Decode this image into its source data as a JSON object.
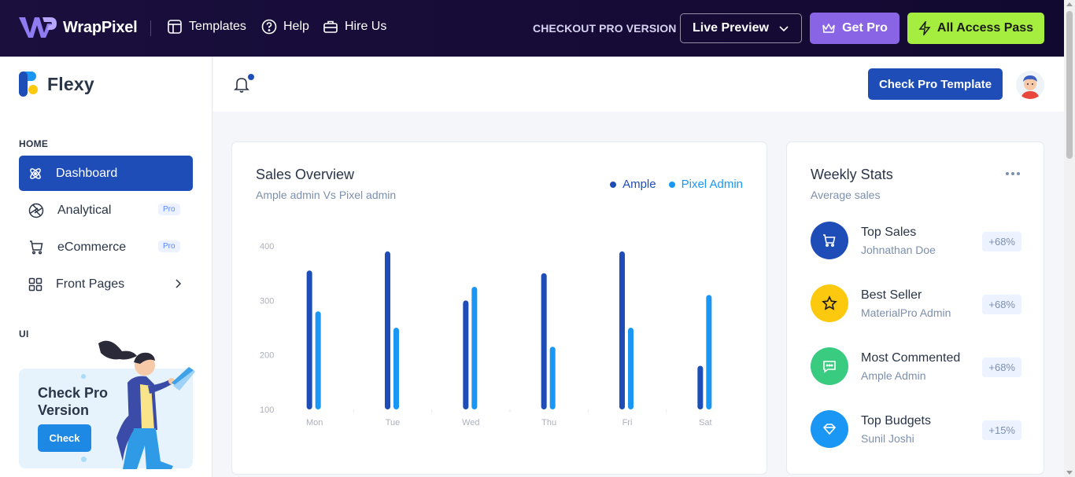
{
  "topbar": {
    "brand": "WrapPixel",
    "links": [
      {
        "label": "Templates",
        "icon": "template-icon"
      },
      {
        "label": "Help",
        "icon": "help-icon"
      },
      {
        "label": "Hire Us",
        "icon": "briefcase-icon"
      }
    ],
    "checkout_label": "CHECKOUT PRO VERSION",
    "live_preview_label": "Live Preview",
    "get_pro_label": "Get Pro",
    "all_access_label": "All Access Pass"
  },
  "sidebar": {
    "brand": "Flexy",
    "caption_home": "HOME",
    "caption_ui": "UI",
    "items": [
      {
        "label": "Dashboard",
        "icon": "atom-icon",
        "active": true
      },
      {
        "label": "Analytical",
        "icon": "aperture-icon",
        "badge": "Pro"
      },
      {
        "label": "eCommerce",
        "icon": "cart-icon",
        "badge": "Pro"
      },
      {
        "label": "Front Pages",
        "icon": "grid-icon"
      }
    ],
    "promo": {
      "title": "Check Pro Version",
      "button": "Check"
    }
  },
  "header": {
    "check_pro_label": "Check Pro Template"
  },
  "sales": {
    "title": "Sales Overview",
    "subtitle": "Ample admin Vs Pixel admin"
  },
  "chart_data": {
    "type": "bar",
    "title": "Sales Overview",
    "subtitle": "Ample admin Vs Pixel admin",
    "categories": [
      "Mon",
      "Tue",
      "Wed",
      "Thu",
      "Fri",
      "Sat"
    ],
    "series": [
      {
        "name": "Ample",
        "color": "#1e4db7",
        "values": [
          355,
          390,
          300,
          350,
          390,
          180
        ]
      },
      {
        "name": "Pixel Admin",
        "color": "#1a97f5",
        "values": [
          280,
          250,
          325,
          215,
          250,
          310
        ]
      }
    ],
    "yticks": [
      "100",
      "200",
      "300",
      "400"
    ],
    "ylim": [
      100,
      400
    ],
    "grid": false,
    "legend": "top-right"
  },
  "weekly": {
    "title": "Weekly Stats",
    "subtitle": "Average sales",
    "stats": [
      {
        "title": "Top Sales",
        "subtitle": "Johnathan Doe",
        "badge": "+68%",
        "color": "#1e4db7",
        "icon": "cart-icon"
      },
      {
        "title": "Best Seller",
        "subtitle": "MaterialPro Admin",
        "badge": "+68%",
        "color": "#fdc90f",
        "icon": "star-icon"
      },
      {
        "title": "Most Commented",
        "subtitle": "Ample Admin",
        "badge": "+68%",
        "color": "#39cb7f",
        "icon": "message-icon"
      },
      {
        "title": "Top Budgets",
        "subtitle": "Sunil Joshi",
        "badge": "+15%",
        "color": "#1a97f5",
        "icon": "diamond-icon"
      }
    ]
  }
}
